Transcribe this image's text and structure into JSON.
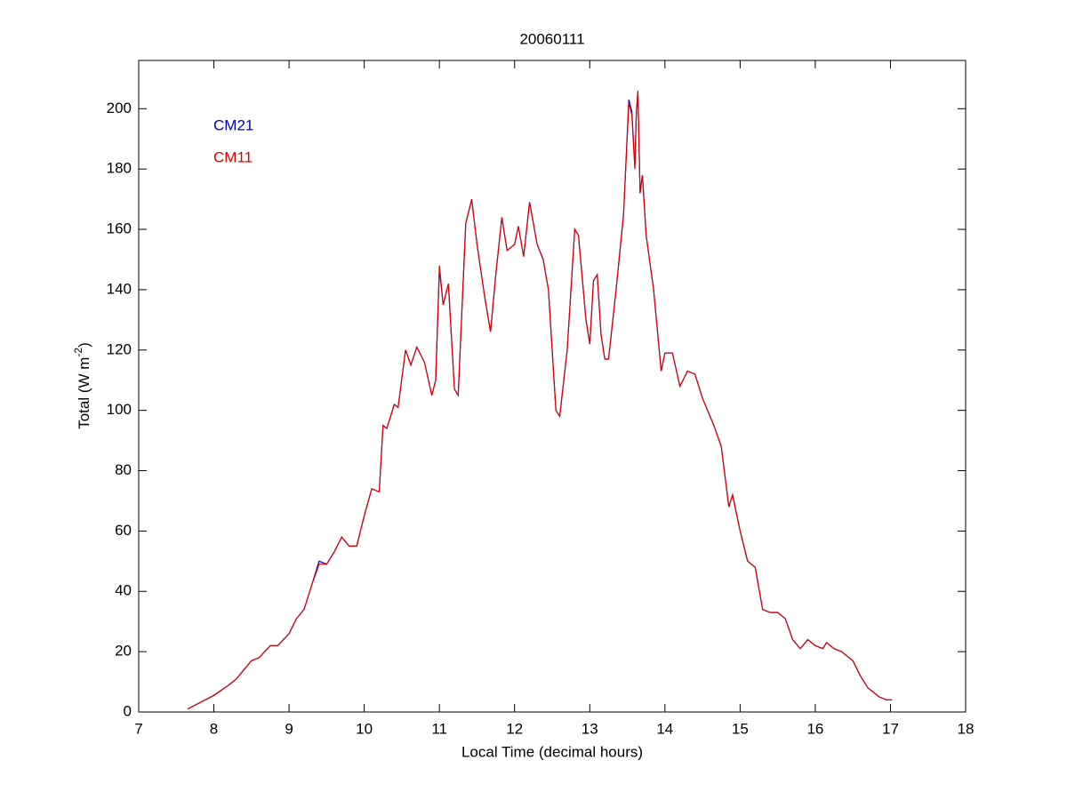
{
  "chart_data": {
    "type": "line",
    "title": "20060111",
    "x_label": "Local Time (decimal hours)",
    "y_label": {
      "text": "Total (W m",
      "superscript": "-2",
      "suffix": ")"
    },
    "x": [
      7.65,
      8.0,
      8.2,
      8.3,
      8.5,
      8.6,
      8.75,
      8.85,
      9.0,
      9.1,
      9.2,
      9.3,
      9.4,
      9.5,
      9.6,
      9.7,
      9.8,
      9.9,
      10.0,
      10.1,
      10.2,
      10.25,
      10.3,
      10.4,
      10.45,
      10.55,
      10.62,
      10.7,
      10.8,
      10.9,
      10.95,
      11.0,
      11.05,
      11.12,
      11.2,
      11.25,
      11.35,
      11.43,
      11.5,
      11.6,
      11.68,
      11.75,
      11.83,
      11.9,
      12.0,
      12.05,
      12.12,
      12.2,
      12.3,
      12.38,
      12.45,
      12.55,
      12.6,
      12.7,
      12.8,
      12.85,
      12.95,
      13.0,
      13.05,
      13.1,
      13.15,
      13.2,
      13.25,
      13.35,
      13.45,
      13.52,
      13.56,
      13.6,
      13.62,
      13.64,
      13.67,
      13.7,
      13.75,
      13.85,
      13.95,
      14.0,
      14.1,
      14.2,
      14.3,
      14.4,
      14.5,
      14.65,
      14.75,
      14.85,
      14.9,
      15.0,
      15.1,
      15.2,
      15.3,
      15.4,
      15.5,
      15.6,
      15.7,
      15.8,
      15.9,
      16.0,
      16.1,
      16.15,
      16.25,
      16.35,
      16.5,
      16.6,
      16.7,
      16.85,
      16.95,
      17.02
    ],
    "series": [
      {
        "name": "CM21",
        "color": "#0000c0",
        "values": [
          1,
          5.5,
          9,
          11,
          17,
          18,
          22,
          22,
          26,
          31,
          34,
          42,
          50,
          49,
          53,
          58,
          55,
          55,
          65,
          74,
          73,
          95,
          94,
          102,
          101,
          120,
          115,
          121,
          116,
          105,
          110,
          147,
          135,
          142,
          107,
          105,
          162,
          170,
          155,
          138,
          126,
          145,
          164,
          153,
          155,
          161,
          151,
          169,
          155,
          150,
          140,
          100,
          98,
          120,
          160,
          158,
          130,
          122,
          143,
          145,
          125,
          117,
          117,
          140,
          165,
          203,
          199,
          181,
          199,
          205,
          172,
          178,
          158,
          140,
          113,
          119,
          119,
          108,
          113,
          112,
          104,
          95,
          88,
          68,
          72,
          60,
          50,
          48,
          34,
          33,
          33,
          31,
          24,
          21,
          24,
          22,
          21,
          23,
          21,
          20,
          17,
          12,
          8,
          5,
          4,
          4
        ]
      },
      {
        "name": "CM11",
        "color": "#e00000",
        "values": [
          1,
          5.5,
          9,
          11,
          17,
          18,
          22,
          22,
          26,
          31,
          34,
          42,
          49,
          49,
          53,
          58,
          55,
          55,
          65,
          74,
          73,
          95,
          94,
          102,
          101,
          120,
          115,
          121,
          116,
          105,
          110,
          148,
          135,
          142,
          107,
          105,
          162,
          170,
          155,
          138,
          126,
          145,
          164,
          153,
          155,
          161,
          151,
          169,
          155,
          150,
          140,
          100,
          98,
          120,
          160,
          158,
          130,
          122,
          143,
          145,
          125,
          117,
          117,
          140,
          165,
          202,
          198,
          180,
          199,
          206,
          172,
          178,
          158,
          140,
          113,
          119,
          119,
          108,
          113,
          112,
          104,
          95,
          88,
          68,
          72,
          60,
          50,
          48,
          34,
          33,
          33,
          31,
          24,
          21,
          24,
          22,
          21,
          23,
          21,
          20,
          17,
          12,
          8,
          5,
          4,
          4
        ]
      }
    ],
    "xlim": [
      7,
      18
    ],
    "xticks": [
      7,
      8,
      9,
      10,
      11,
      12,
      13,
      14,
      15,
      16,
      17,
      18
    ],
    "ylim": [
      0,
      216
    ],
    "yticks": [
      0,
      20,
      40,
      60,
      80,
      100,
      120,
      140,
      160,
      180,
      200
    ],
    "legend": "upper left",
    "grid": false
  }
}
